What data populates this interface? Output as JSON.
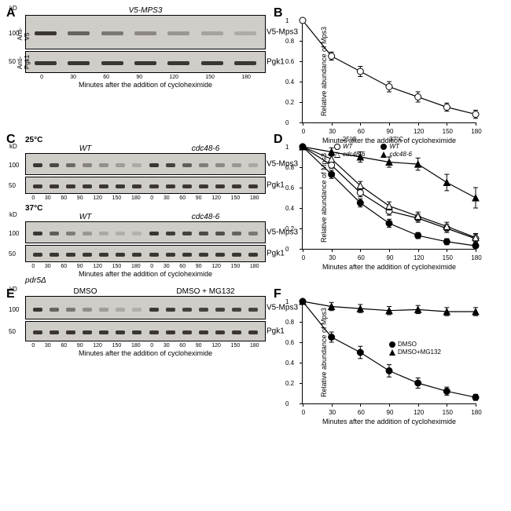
{
  "global": {
    "protein_label": "V5-Mps3",
    "loading_label": "Pgk1",
    "x_axis_label": "Minutes after the addition of cycloheximide",
    "y_axis_label": "Relative abundance of Mps3",
    "kd_unit": "kD",
    "timepoints": [
      0,
      30,
      60,
      90,
      120,
      150,
      180
    ],
    "yticks": [
      0,
      0.2,
      0.4,
      0.6,
      0.8,
      1
    ],
    "line_color": "#000000",
    "blot_bg": "#d0cdc8",
    "band_color": "#3a3632"
  },
  "panelA": {
    "label": "A",
    "strain": "V5-MPS3",
    "antiV5": "Anti-V5",
    "antiPgk1": "Anti-Pgk1",
    "kd_marks": [
      100,
      50
    ],
    "band_intensities": [
      1.0,
      0.65,
      0.5,
      0.35,
      0.25,
      0.15,
      0.08
    ],
    "pgk1_intensities": [
      1,
      1,
      1,
      1,
      1,
      1,
      1
    ]
  },
  "panelB": {
    "label": "B",
    "series": [
      {
        "name": "V5-MPS3",
        "marker": "circle-open",
        "values": [
          1.0,
          0.65,
          0.5,
          0.35,
          0.25,
          0.15,
          0.08
        ],
        "errors": [
          0,
          0.04,
          0.05,
          0.05,
          0.05,
          0.04,
          0.04
        ]
      }
    ]
  },
  "panelC": {
    "label": "C",
    "temp25": "25°C",
    "temp37": "37°C",
    "wt": "WT",
    "mutant": "cdc48-6",
    "kd_marks": [
      100,
      50
    ],
    "wt25_intensities": [
      1.0,
      0.85,
      0.6,
      0.4,
      0.3,
      0.2,
      0.1
    ],
    "mut25_intensities": [
      1.0,
      0.9,
      0.7,
      0.45,
      0.35,
      0.25,
      0.12
    ],
    "wt37_intensities": [
      1.0,
      0.7,
      0.45,
      0.25,
      0.12,
      0.06,
      0.03
    ],
    "mut37_intensities": [
      1.0,
      0.95,
      0.9,
      0.85,
      0.8,
      0.65,
      0.5
    ]
  },
  "panelD": {
    "label": "D",
    "legend_temp25": "25°C",
    "legend_temp37": "37°C",
    "legend_wt": "WT",
    "legend_mut": "cdc48-6",
    "series": [
      {
        "name": "WT 25°C",
        "marker": "circle-open",
        "values": [
          1.0,
          0.82,
          0.55,
          0.37,
          0.3,
          0.2,
          0.1
        ],
        "errors": [
          0,
          0.03,
          0.04,
          0.04,
          0.04,
          0.04,
          0.04
        ]
      },
      {
        "name": "cdc48-6 25°C",
        "marker": "tri-open",
        "values": [
          1.0,
          0.88,
          0.62,
          0.42,
          0.32,
          0.22,
          0.11
        ],
        "errors": [
          0,
          0.03,
          0.04,
          0.04,
          0.04,
          0.04,
          0.04
        ]
      },
      {
        "name": "WT 37°C",
        "marker": "circle-filled",
        "values": [
          1.0,
          0.73,
          0.45,
          0.25,
          0.13,
          0.07,
          0.03
        ],
        "errors": [
          0,
          0.04,
          0.04,
          0.04,
          0.03,
          0.03,
          0.02
        ]
      },
      {
        "name": "cdc48-6 37°C",
        "marker": "tri-filled",
        "values": [
          1.0,
          0.95,
          0.9,
          0.85,
          0.83,
          0.65,
          0.5
        ],
        "errors": [
          0,
          0.04,
          0.05,
          0.05,
          0.06,
          0.08,
          0.1
        ]
      }
    ]
  },
  "panelE": {
    "label": "E",
    "strain": "pdr5Δ",
    "cond1": "DMSO",
    "cond2": "DMSO + MG132",
    "kd_marks": [
      100,
      50
    ],
    "dmso_intensities": [
      1.0,
      0.65,
      0.5,
      0.32,
      0.2,
      0.12,
      0.06
    ],
    "mg132_intensities": [
      1.0,
      0.95,
      0.92,
      0.9,
      0.9,
      0.9,
      0.9
    ]
  },
  "panelF": {
    "label": "F",
    "legend1": "DMSO",
    "legend2": "DMSO+MG132",
    "series": [
      {
        "name": "DMSO",
        "marker": "circle-filled",
        "values": [
          1.0,
          0.65,
          0.5,
          0.32,
          0.2,
          0.12,
          0.06
        ],
        "errors": [
          0,
          0.05,
          0.06,
          0.06,
          0.05,
          0.04,
          0.03
        ]
      },
      {
        "name": "DMSO+MG132",
        "marker": "tri-filled",
        "values": [
          1.0,
          0.95,
          0.93,
          0.91,
          0.92,
          0.9,
          0.9
        ],
        "errors": [
          0,
          0.04,
          0.04,
          0.04,
          0.04,
          0.04,
          0.04
        ]
      }
    ]
  }
}
